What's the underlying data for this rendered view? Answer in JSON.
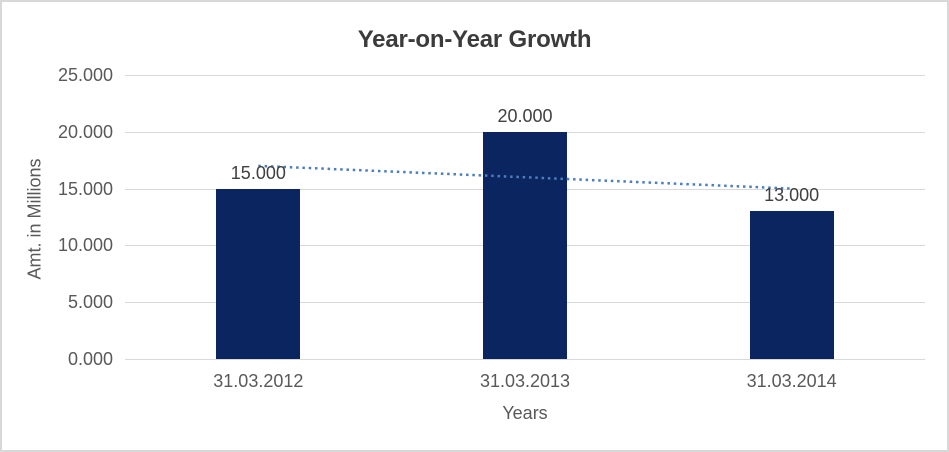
{
  "chart_data": {
    "type": "bar",
    "title": "Year-on-Year Growth",
    "xlabel": "Years",
    "ylabel": "Amt. in Millions",
    "categories": [
      "31.03.2012",
      "31.03.2013",
      "31.03.2014"
    ],
    "values": [
      15,
      20,
      13
    ],
    "value_labels": [
      "15.000",
      "20.000",
      "13.000"
    ],
    "ylim": [
      0,
      25
    ],
    "ytick_step": 5,
    "ytick_labels": [
      "0.000",
      "5.000",
      "10.000",
      "15.000",
      "20.000",
      "25.000"
    ],
    "grid": true,
    "legend": "none",
    "trendline": {
      "type": "linear",
      "style": "dotted",
      "start_value": 17,
      "end_value": 15
    },
    "colors": {
      "bar": "#0b2560",
      "trendline": "#4a7ebd",
      "gridline": "#d9d9d9",
      "axis_text": "#595959",
      "label_text": "#404040",
      "title_text": "#3b3b3b",
      "border": "#d8d8d8",
      "background": "#ffffff"
    }
  }
}
